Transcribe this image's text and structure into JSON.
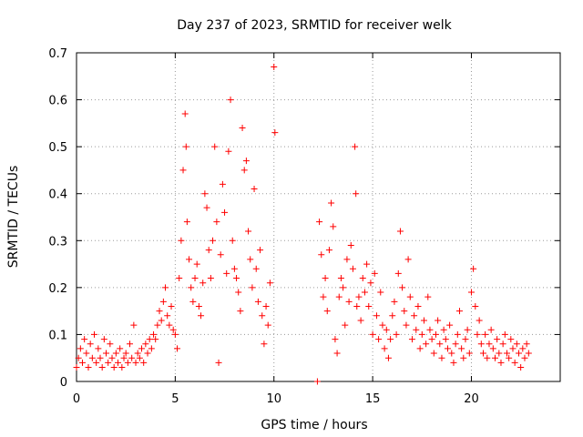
{
  "chart_data": {
    "type": "scatter",
    "title": "Day 237 of 2023, SRMTID for receiver welk",
    "xlabel": "GPS time / hours",
    "ylabel": "SRMTID / TECUs",
    "xlim": [
      0,
      24.5
    ],
    "ylim": [
      0,
      0.7
    ],
    "xticks": [
      0,
      5,
      10,
      15,
      20
    ],
    "xtick_labels": [
      "0",
      "5",
      "10",
      "15",
      "20"
    ],
    "yticks": [
      0,
      0.1,
      0.2,
      0.3,
      0.4,
      0.5,
      0.6,
      0.7
    ],
    "ytick_labels": [
      "0",
      "0.1",
      "0.2",
      "0.3",
      "0.4",
      "0.5",
      "0.6",
      "0.7"
    ],
    "grid": true,
    "marker": "+",
    "color": "#ff0000",
    "series": [
      {
        "name": "SRMTID",
        "points": [
          [
            0.0,
            0.03
          ],
          [
            0.1,
            0.05
          ],
          [
            0.2,
            0.07
          ],
          [
            0.3,
            0.04
          ],
          [
            0.4,
            0.09
          ],
          [
            0.5,
            0.06
          ],
          [
            0.6,
            0.03
          ],
          [
            0.7,
            0.08
          ],
          [
            0.8,
            0.05
          ],
          [
            0.9,
            0.1
          ],
          [
            1.0,
            0.04
          ],
          [
            1.1,
            0.07
          ],
          [
            1.2,
            0.05
          ],
          [
            1.3,
            0.03
          ],
          [
            1.4,
            0.09
          ],
          [
            1.5,
            0.06
          ],
          [
            1.6,
            0.04
          ],
          [
            1.7,
            0.08
          ],
          [
            1.8,
            0.05
          ],
          [
            1.9,
            0.03
          ],
          [
            2.0,
            0.06
          ],
          [
            2.1,
            0.04
          ],
          [
            2.2,
            0.07
          ],
          [
            2.3,
            0.03
          ],
          [
            2.4,
            0.05
          ],
          [
            2.5,
            0.06
          ],
          [
            2.6,
            0.04
          ],
          [
            2.7,
            0.08
          ],
          [
            2.8,
            0.05
          ],
          [
            2.9,
            0.12
          ],
          [
            3.0,
            0.04
          ],
          [
            3.1,
            0.06
          ],
          [
            3.2,
            0.05
          ],
          [
            3.3,
            0.07
          ],
          [
            3.4,
            0.04
          ],
          [
            3.5,
            0.08
          ],
          [
            3.6,
            0.06
          ],
          [
            3.7,
            0.09
          ],
          [
            3.8,
            0.07
          ],
          [
            3.9,
            0.1
          ],
          [
            4.0,
            0.09
          ],
          [
            4.1,
            0.12
          ],
          [
            4.2,
            0.15
          ],
          [
            4.3,
            0.13
          ],
          [
            4.4,
            0.17
          ],
          [
            4.5,
            0.2
          ],
          [
            4.6,
            0.14
          ],
          [
            4.7,
            0.12
          ],
          [
            4.8,
            0.16
          ],
          [
            4.9,
            0.11
          ],
          [
            5.0,
            0.1
          ],
          [
            5.1,
            0.07
          ],
          [
            5.2,
            0.22
          ],
          [
            5.3,
            0.3
          ],
          [
            5.4,
            0.45
          ],
          [
            5.5,
            0.57
          ],
          [
            5.55,
            0.5
          ],
          [
            5.6,
            0.34
          ],
          [
            5.7,
            0.26
          ],
          [
            5.8,
            0.2
          ],
          [
            5.9,
            0.17
          ],
          [
            6.0,
            0.22
          ],
          [
            6.1,
            0.25
          ],
          [
            6.2,
            0.16
          ],
          [
            6.3,
            0.14
          ],
          [
            6.4,
            0.21
          ],
          [
            6.5,
            0.4
          ],
          [
            6.6,
            0.37
          ],
          [
            6.7,
            0.28
          ],
          [
            6.8,
            0.22
          ],
          [
            6.9,
            0.3
          ],
          [
            7.0,
            0.5
          ],
          [
            7.1,
            0.34
          ],
          [
            7.2,
            0.04
          ],
          [
            7.3,
            0.27
          ],
          [
            7.4,
            0.42
          ],
          [
            7.5,
            0.36
          ],
          [
            7.6,
            0.23
          ],
          [
            7.7,
            0.49
          ],
          [
            7.8,
            0.6
          ],
          [
            7.9,
            0.3
          ],
          [
            8.0,
            0.24
          ],
          [
            8.1,
            0.22
          ],
          [
            8.2,
            0.19
          ],
          [
            8.3,
            0.15
          ],
          [
            8.4,
            0.54
          ],
          [
            8.5,
            0.45
          ],
          [
            8.6,
            0.47
          ],
          [
            8.7,
            0.32
          ],
          [
            8.8,
            0.26
          ],
          [
            8.9,
            0.2
          ],
          [
            9.0,
            0.41
          ],
          [
            9.1,
            0.24
          ],
          [
            9.2,
            0.17
          ],
          [
            9.3,
            0.28
          ],
          [
            9.4,
            0.14
          ],
          [
            9.5,
            0.08
          ],
          [
            9.6,
            0.16
          ],
          [
            9.7,
            0.12
          ],
          [
            9.8,
            0.21
          ],
          [
            10.0,
            0.67
          ],
          [
            10.05,
            0.53
          ],
          [
            12.2,
            0.0
          ],
          [
            12.3,
            0.34
          ],
          [
            12.4,
            0.27
          ],
          [
            12.5,
            0.18
          ],
          [
            12.6,
            0.22
          ],
          [
            12.7,
            0.15
          ],
          [
            12.8,
            0.28
          ],
          [
            12.9,
            0.38
          ],
          [
            13.0,
            0.33
          ],
          [
            13.1,
            0.09
          ],
          [
            13.2,
            0.06
          ],
          [
            13.3,
            0.18
          ],
          [
            13.4,
            0.22
          ],
          [
            13.5,
            0.2
          ],
          [
            13.6,
            0.12
          ],
          [
            13.7,
            0.26
          ],
          [
            13.8,
            0.17
          ],
          [
            13.9,
            0.29
          ],
          [
            14.0,
            0.24
          ],
          [
            14.1,
            0.5
          ],
          [
            14.15,
            0.4
          ],
          [
            14.2,
            0.16
          ],
          [
            14.3,
            0.18
          ],
          [
            14.4,
            0.13
          ],
          [
            14.5,
            0.22
          ],
          [
            14.6,
            0.19
          ],
          [
            14.7,
            0.25
          ],
          [
            14.8,
            0.16
          ],
          [
            14.9,
            0.21
          ],
          [
            15.0,
            0.1
          ],
          [
            15.1,
            0.23
          ],
          [
            15.2,
            0.14
          ],
          [
            15.3,
            0.09
          ],
          [
            15.4,
            0.19
          ],
          [
            15.5,
            0.12
          ],
          [
            15.6,
            0.07
          ],
          [
            15.7,
            0.11
          ],
          [
            15.8,
            0.05
          ],
          [
            15.9,
            0.09
          ],
          [
            16.0,
            0.14
          ],
          [
            16.1,
            0.17
          ],
          [
            16.2,
            0.1
          ],
          [
            16.3,
            0.23
          ],
          [
            16.4,
            0.32
          ],
          [
            16.5,
            0.2
          ],
          [
            16.6,
            0.15
          ],
          [
            16.7,
            0.12
          ],
          [
            16.8,
            0.26
          ],
          [
            16.9,
            0.18
          ],
          [
            17.0,
            0.09
          ],
          [
            17.1,
            0.14
          ],
          [
            17.2,
            0.11
          ],
          [
            17.3,
            0.16
          ],
          [
            17.4,
            0.07
          ],
          [
            17.5,
            0.1
          ],
          [
            17.6,
            0.13
          ],
          [
            17.7,
            0.08
          ],
          [
            17.8,
            0.18
          ],
          [
            17.9,
            0.11
          ],
          [
            18.0,
            0.09
          ],
          [
            18.1,
            0.06
          ],
          [
            18.2,
            0.1
          ],
          [
            18.3,
            0.13
          ],
          [
            18.4,
            0.08
          ],
          [
            18.5,
            0.05
          ],
          [
            18.6,
            0.11
          ],
          [
            18.7,
            0.09
          ],
          [
            18.8,
            0.07
          ],
          [
            18.9,
            0.12
          ],
          [
            19.0,
            0.06
          ],
          [
            19.1,
            0.04
          ],
          [
            19.2,
            0.08
          ],
          [
            19.3,
            0.1
          ],
          [
            19.4,
            0.15
          ],
          [
            19.5,
            0.07
          ],
          [
            19.6,
            0.05
          ],
          [
            19.7,
            0.09
          ],
          [
            19.8,
            0.11
          ],
          [
            19.9,
            0.06
          ],
          [
            20.0,
            0.19
          ],
          [
            20.1,
            0.24
          ],
          [
            20.2,
            0.16
          ],
          [
            20.3,
            0.1
          ],
          [
            20.4,
            0.13
          ],
          [
            20.5,
            0.08
          ],
          [
            20.6,
            0.06
          ],
          [
            20.7,
            0.1
          ],
          [
            20.8,
            0.05
          ],
          [
            20.9,
            0.08
          ],
          [
            21.0,
            0.11
          ],
          [
            21.1,
            0.07
          ],
          [
            21.2,
            0.05
          ],
          [
            21.3,
            0.09
          ],
          [
            21.4,
            0.06
          ],
          [
            21.5,
            0.04
          ],
          [
            21.6,
            0.08
          ],
          [
            21.7,
            0.1
          ],
          [
            21.8,
            0.06
          ],
          [
            21.9,
            0.05
          ],
          [
            22.0,
            0.09
          ],
          [
            22.1,
            0.07
          ],
          [
            22.2,
            0.04
          ],
          [
            22.3,
            0.08
          ],
          [
            22.4,
            0.06
          ],
          [
            22.5,
            0.03
          ],
          [
            22.6,
            0.07
          ],
          [
            22.7,
            0.05
          ],
          [
            22.8,
            0.08
          ],
          [
            22.9,
            0.06
          ]
        ]
      }
    ]
  }
}
